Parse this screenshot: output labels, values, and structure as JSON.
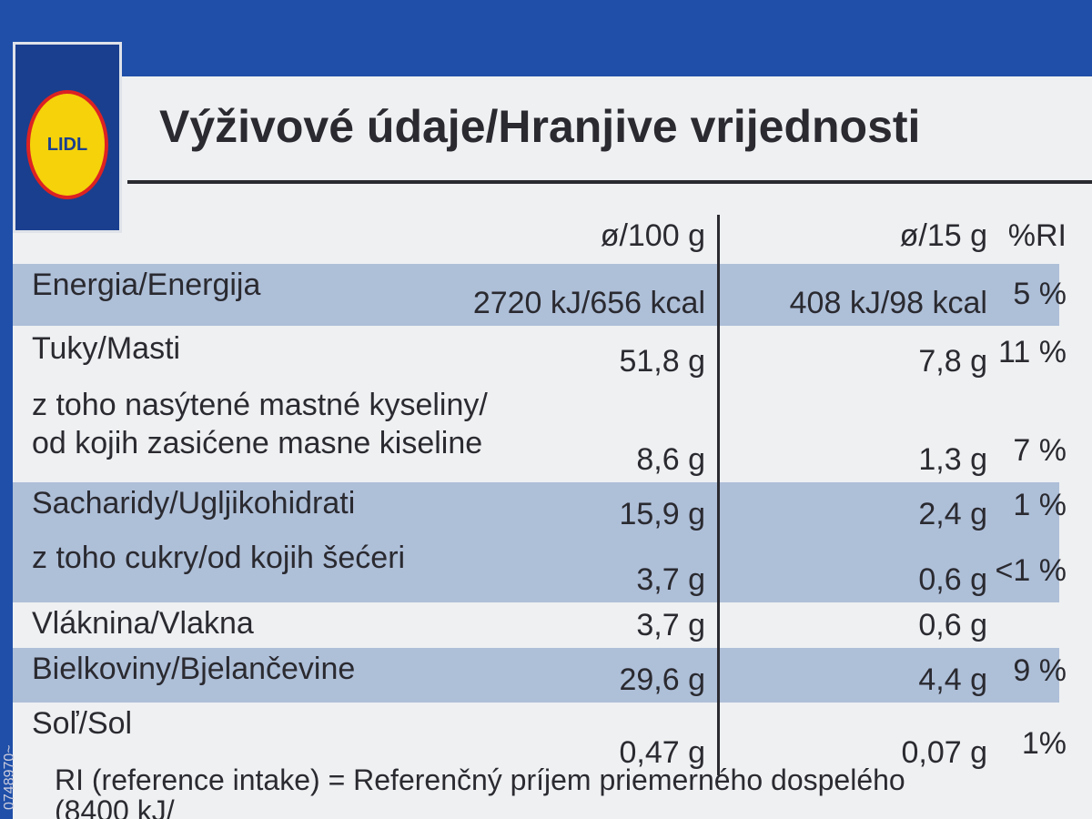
{
  "logo": "LIDL",
  "title": "Výživové údaje/Hranjive vrijednosti",
  "columns": {
    "per100": "ø/100 g",
    "per15": "ø/15 g",
    "ri": "%RI"
  },
  "rows": [
    {
      "label": [
        "Energia/Energija"
      ],
      "per100": "2720 kJ/656 kcal",
      "per15": "408 kJ/98 kcal",
      "ri": "5 %"
    },
    {
      "label": [
        "Tuky/Masti"
      ],
      "per100": "51,8 g",
      "per15": "7,8 g",
      "ri": "11 %"
    },
    {
      "label": [
        "z toho nasýtené mastné kyseliny/",
        "od kojih zasićene masne kiseline"
      ],
      "per100": "8,6 g",
      "per15": "1,3 g",
      "ri": "7 %"
    },
    {
      "label": [
        "Sacharidy/Ugljikohidrati"
      ],
      "per100": "15,9 g",
      "per15": "2,4 g",
      "ri": "1 %"
    },
    {
      "label": [
        "z toho cukry/od kojih šećeri"
      ],
      "per100": "3,7 g",
      "per15": "0,6 g",
      "ri": "<1 %"
    },
    {
      "label": [
        "Vláknina/Vlakna"
      ],
      "per100": "3,7 g",
      "per15": "0,6 g",
      "ri": null
    },
    {
      "label": [
        "Bielkoviny/Bjelančevine"
      ],
      "per100": "29,6 g",
      "per15": "4,4 g",
      "ri": "9 %"
    },
    {
      "label": [
        "Soľ/Sol"
      ],
      "per100": "0,47 g",
      "per15": "0,07 g",
      "ri": "1%"
    }
  ],
  "footnote": [
    "RI (reference intake) = Referenčný príjem priemerného dospelého",
    "(8400 kJ/"
  ],
  "side_code": "0748970~"
}
